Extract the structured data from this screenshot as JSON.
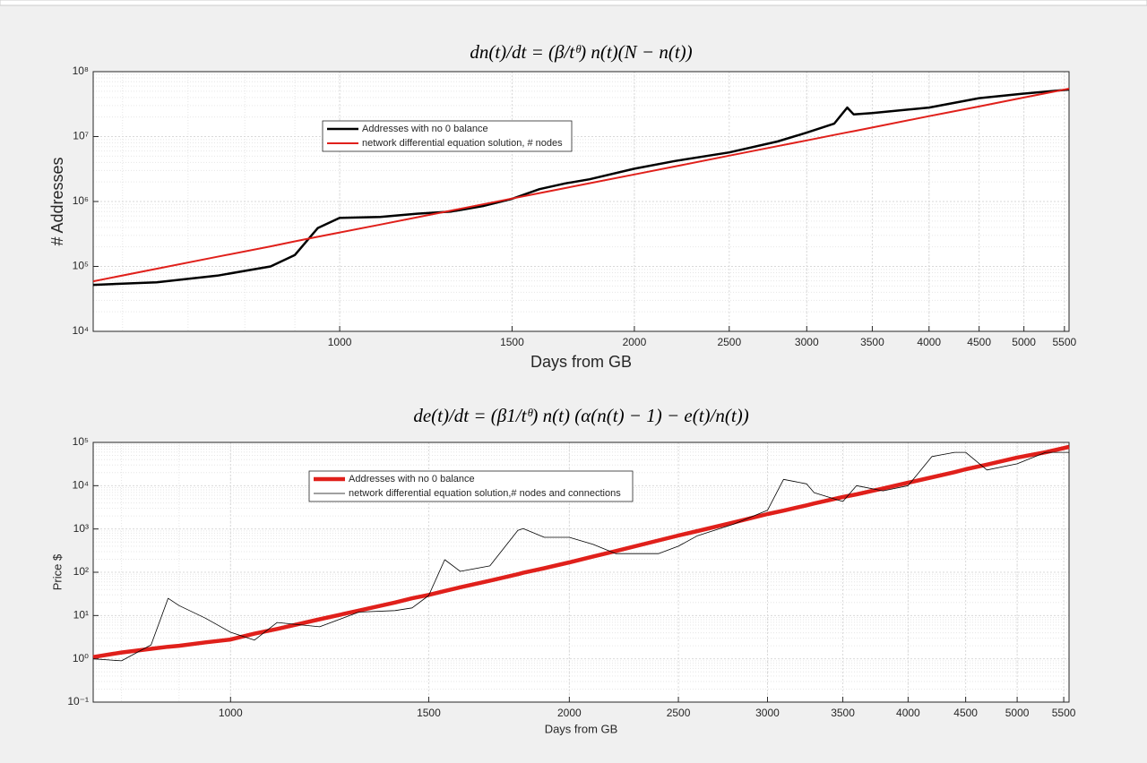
{
  "chart_data": [
    {
      "type": "line",
      "title": "dn(t)/dt = (β/tᶿ) n(t)(N − n(t))",
      "xlabel": "Days from GB",
      "ylabel": "# Addresses",
      "xscale": "log",
      "yscale": "log",
      "grid": true,
      "legend": "upper left",
      "xlim": [
        560,
        5560
      ],
      "ylim": [
        10000,
        100000000
      ],
      "xticks": [
        1000,
        1500,
        2000,
        2500,
        3000,
        3500,
        4000,
        4500,
        5000,
        5500
      ],
      "yticks": [
        {
          "value": 10000,
          "label": "10⁴"
        },
        {
          "value": 100000,
          "label": "10⁵"
        },
        {
          "value": 1000000,
          "label": "10⁶"
        },
        {
          "value": 10000000,
          "label": "10⁷"
        },
        {
          "value": 100000000,
          "label": "10⁸"
        }
      ],
      "x": [
        560,
        650,
        750,
        850,
        900,
        950,
        1000,
        1100,
        1200,
        1300,
        1400,
        1500,
        1600,
        1700,
        1800,
        2000,
        2200,
        2500,
        2800,
        3000,
        3200,
        3300,
        3350,
        3500,
        4000,
        4500,
        5000,
        5560
      ],
      "series": [
        {
          "name": "Addresses with no 0 balance",
          "color": "#000000",
          "values": [
            52000,
            57000,
            72000,
            100000,
            150000,
            390000,
            560000,
            580000,
            650000,
            700000,
            850000,
            1100000,
            1550000,
            1900000,
            2200000,
            3200000,
            4200000,
            5700000,
            8400000,
            11500000,
            15800000,
            28000000,
            22000000,
            23000000,
            28000000,
            39000000,
            46000000,
            53000000
          ]
        },
        {
          "name": "network differential equation solution, # nodes",
          "color": "#e0201b",
          "values": [
            59000,
            92000,
            141000,
            204000,
            243000,
            286000,
            333000,
            440000,
            571000,
            726000,
            904000,
            1110000,
            1350000,
            1610000,
            1910000,
            2610000,
            3460000,
            5080000,
            7110000,
            8730000,
            10600000,
            11600000,
            12100000,
            13800000,
            20600000,
            29100000,
            39900000,
            54700000
          ]
        }
      ]
    },
    {
      "type": "line",
      "title": "de(t)/dt = (β1/tᶿ) n(t) (α(n(t) − 1) − e(t)/n(t))",
      "xlabel": "Days from GB",
      "ylabel": "Price $",
      "xscale": "log",
      "yscale": "log",
      "grid": true,
      "legend": "upper left",
      "xlim": [
        755,
        5560
      ],
      "ylim": [
        0.1,
        100000
      ],
      "xticks": [
        1000,
        1500,
        2000,
        2500,
        3000,
        3500,
        4000,
        4500,
        5000,
        5500
      ],
      "yticks": [
        {
          "value": 0.1,
          "label": "10⁻¹"
        },
        {
          "value": 1,
          "label": "10⁰"
        },
        {
          "value": 10,
          "label": "10¹"
        },
        {
          "value": 100,
          "label": "10²"
        },
        {
          "value": 1000,
          "label": "10³"
        },
        {
          "value": 10000,
          "label": "10⁴"
        },
        {
          "value": 100000,
          "label": "10⁵"
        }
      ],
      "x": [
        755,
        800,
        850,
        880,
        900,
        950,
        1000,
        1050,
        1100,
        1200,
        1300,
        1400,
        1450,
        1500,
        1550,
        1600,
        1700,
        1800,
        1820,
        1900,
        2000,
        2100,
        2200,
        2400,
        2500,
        2600,
        2800,
        3000,
        3100,
        3250,
        3300,
        3500,
        3600,
        3800,
        4000,
        4200,
        4400,
        4500,
        4700,
        5000,
        5300,
        5560
      ],
      "series": [
        {
          "name": "Addresses with no 0 balance",
          "color": "#e0201b",
          "values": [
            1.1,
            1.4,
            1.7,
            1.9,
            2.0,
            2.4,
            2.8,
            3.8,
            4.9,
            8.2,
            13,
            20,
            25,
            30,
            37,
            45,
            64,
            90,
            97,
            124,
            169,
            231,
            309,
            543,
            705,
            895,
            1420,
            2210,
            2650,
            3520,
            3880,
            5470,
            6310,
            8650,
            11700,
            15600,
            20600,
            24000,
            30700,
            44600,
            59300,
            78900
          ]
        },
        {
          "name": "network differential equation solution,# nodes and connections",
          "color": "#000000",
          "values": [
            1.0,
            0.9,
            2.1,
            25,
            17,
            8.7,
            4.1,
            2.7,
            6.9,
            5.5,
            12,
            13,
            15,
            29,
            195,
            105,
            140,
            930,
            1020,
            640,
            640,
            440,
            270,
            270,
            400,
            700,
            1300,
            2700,
            14000,
            11000,
            6900,
            4300,
            10000,
            7600,
            10000,
            47000,
            59000,
            59000,
            23000,
            32000,
            59000,
            59000
          ]
        }
      ]
    }
  ]
}
